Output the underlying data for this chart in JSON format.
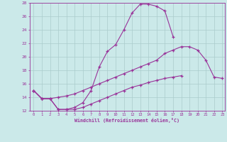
{
  "xlabel": "Windchill (Refroidissement éolien,°C)",
  "bg_color": "#cbe9e9",
  "line_color": "#993399",
  "grid_color": "#aacccc",
  "xmin": 0,
  "xmax": 23,
  "ymin": 12,
  "ymax": 28,
  "series1_x": [
    0,
    1,
    2,
    3,
    4,
    5,
    6,
    7,
    8,
    9,
    10,
    11,
    12,
    13,
    14,
    15,
    16,
    17
  ],
  "series1_y": [
    15.0,
    13.8,
    13.8,
    12.2,
    12.2,
    12.5,
    13.2,
    15.0,
    18.5,
    20.8,
    21.8,
    24.0,
    26.5,
    27.8,
    27.8,
    27.5,
    26.8,
    23.0
  ],
  "series2_x": [
    0,
    1,
    2,
    3,
    4,
    5,
    6,
    7,
    8,
    9,
    10,
    11,
    12,
    13,
    14,
    15,
    16,
    17,
    18,
    19,
    20,
    21,
    22,
    23
  ],
  "series2_y": [
    15.0,
    13.8,
    13.8,
    14.0,
    14.2,
    14.5,
    15.0,
    15.5,
    16.0,
    16.5,
    17.0,
    17.5,
    18.0,
    18.5,
    19.0,
    19.5,
    20.5,
    21.0,
    21.5,
    21.5,
    21.0,
    19.5,
    17.0,
    16.8
  ],
  "series3_x": [
    0,
    1,
    2,
    3,
    4,
    5,
    6,
    7,
    8,
    9,
    10,
    11,
    12,
    13,
    14,
    15,
    16,
    17,
    18
  ],
  "series3_y": [
    15.0,
    13.8,
    13.8,
    12.2,
    12.2,
    12.2,
    12.5,
    13.0,
    13.5,
    14.0,
    14.5,
    15.0,
    15.5,
    15.8,
    16.2,
    16.5,
    16.8,
    17.0,
    17.2
  ]
}
